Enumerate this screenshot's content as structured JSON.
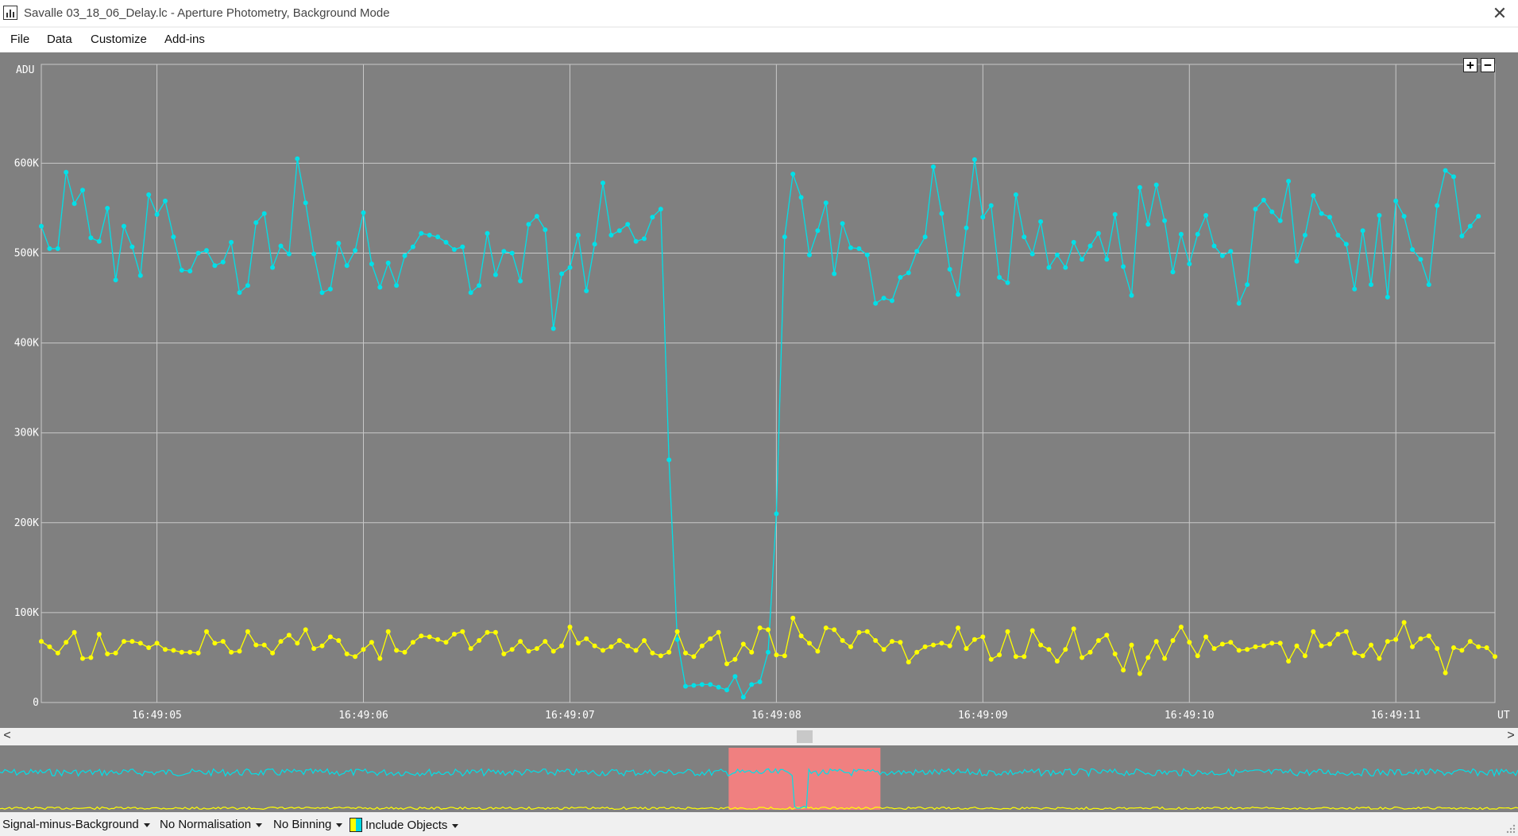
{
  "window": {
    "title": "Savalle 03_18_06_Delay.lc - Aperture Photometry, Background Mode",
    "icon": "light-curve-app-icon",
    "close_label": "✕"
  },
  "menu": [
    "File",
    "Data",
    "Customize",
    "Add-ins"
  ],
  "zoom": {
    "plus": "+",
    "minus": "−"
  },
  "status": {
    "signal_mode": "Signal-minus-Background",
    "normalisation": "No Normalisation",
    "binning": "No Binning",
    "include_objects": "Include Objects"
  },
  "scroll": {
    "left": "<",
    "right": ">"
  },
  "colors": {
    "target": "#00e0e8",
    "comparison": "#ffff00",
    "selection": "#f08080",
    "background": "#808080"
  },
  "chart_data": {
    "type": "line",
    "ylabel": "ADU",
    "xlabel": "UT",
    "ylim": [
      0,
      710000
    ],
    "xlim": [
      4.44,
      11.48
    ],
    "yticks": [
      {
        "v": 0,
        "label": "0"
      },
      {
        "v": 100000,
        "label": "100K"
      },
      {
        "v": 200000,
        "label": "200K"
      },
      {
        "v": 300000,
        "label": "300K"
      },
      {
        "v": 400000,
        "label": "400K"
      },
      {
        "v": 500000,
        "label": "500K"
      },
      {
        "v": 600000,
        "label": "600K"
      }
    ],
    "xticks": [
      {
        "v": 5,
        "label": "16:49:05"
      },
      {
        "v": 6,
        "label": "16:49:06"
      },
      {
        "v": 7,
        "label": "16:49:07"
      },
      {
        "v": 8,
        "label": "16:49:08"
      },
      {
        "v": 9,
        "label": "16:49:09"
      },
      {
        "v": 10,
        "label": "16:49:10"
      },
      {
        "v": 11,
        "label": "16:49:11"
      }
    ],
    "x_start": 4.44,
    "x_step": 0.04,
    "series": [
      {
        "values": [
          530,
          505,
          505,
          590,
          555,
          570,
          517,
          513,
          550,
          470,
          530,
          507,
          475,
          565,
          543,
          558,
          518,
          481,
          480,
          500,
          503,
          486,
          490,
          512,
          456,
          464,
          534,
          544,
          484,
          508,
          499,
          605,
          556,
          499,
          456,
          460,
          511,
          486,
          503,
          545,
          488,
          462,
          489,
          464,
          497,
          507,
          522,
          520,
          518,
          512,
          504,
          507,
          456,
          464,
          522,
          476,
          502,
          500,
          469,
          532,
          541,
          526,
          416,
          477,
          484,
          520,
          458,
          510,
          578,
          520,
          525,
          532,
          513,
          516,
          540,
          549,
          270,
          70,
          18,
          19,
          20,
          20,
          17,
          14,
          29,
          6,
          20,
          23,
          56,
          210,
          518,
          588,
          562,
          498,
          525,
          556,
          477,
          533,
          506,
          505,
          498,
          444,
          450,
          447,
          473,
          478,
          502,
          518,
          596,
          544,
          482,
          454,
          528,
          604,
          540,
          553,
          473,
          467,
          565,
          518,
          499,
          535,
          484,
          498,
          484,
          512,
          493,
          508,
          522,
          493,
          543,
          485,
          453,
          573,
          532,
          576,
          536,
          479,
          521,
          488,
          521,
          542,
          508,
          497,
          502,
          444,
          465,
          549,
          559,
          546,
          536,
          580,
          491,
          520,
          564,
          544,
          540,
          520,
          510,
          460,
          525,
          465,
          542,
          451,
          558,
          541,
          504,
          493,
          465,
          553,
          592,
          585,
          519,
          530,
          541
        ]
      },
      {
        "values": [
          68,
          62,
          55,
          67,
          78,
          49,
          50,
          76,
          54,
          55,
          68,
          68,
          66,
          61,
          66,
          59,
          58,
          56,
          56,
          55,
          79,
          66,
          68,
          56,
          57,
          79,
          64,
          64,
          55,
          68,
          75,
          66,
          81,
          60,
          63,
          73,
          69,
          54,
          51,
          59,
          67,
          49,
          79,
          58,
          56,
          67,
          74,
          73,
          70,
          67,
          76,
          79,
          60,
          69,
          78,
          78,
          54,
          59,
          68,
          57,
          60,
          68,
          57,
          63,
          84,
          66,
          71,
          63,
          58,
          62,
          69,
          63,
          58,
          69,
          55,
          52,
          56,
          79,
          55,
          51,
          63,
          71,
          78,
          43,
          48,
          65,
          56,
          83,
          81,
          53,
          52,
          94,
          74,
          66,
          57,
          83,
          81,
          69,
          62,
          78,
          79,
          69,
          59,
          68,
          67,
          45,
          56,
          62,
          64,
          66,
          63,
          83,
          60,
          70,
          73,
          48,
          53,
          79,
          51,
          51,
          80,
          64,
          59,
          46,
          59,
          82,
          50,
          56,
          69,
          75,
          54,
          36,
          64,
          32,
          50,
          68,
          49,
          69,
          84,
          67,
          52,
          73,
          60,
          65,
          67,
          58,
          59,
          62,
          63,
          66,
          66,
          46,
          63,
          52,
          79,
          63,
          65,
          76,
          79,
          55,
          52,
          64,
          49,
          68,
          70,
          89,
          62,
          71,
          74,
          60,
          33,
          61,
          58,
          68,
          62,
          61,
          51
        ]
      }
    ],
    "overview": {
      "selection_range": [
        0.48,
        0.58
      ]
    }
  }
}
